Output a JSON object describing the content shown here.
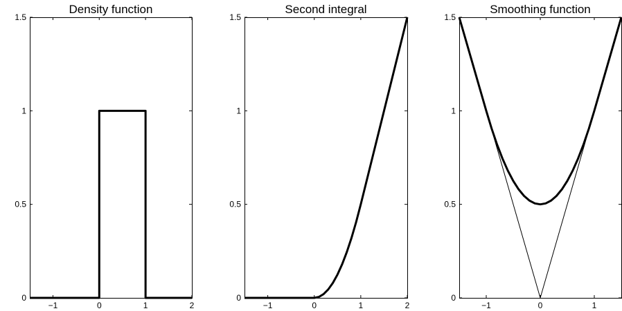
{
  "chart_data": [
    {
      "type": "line",
      "title": "Density function",
      "xlim": [
        -1.5,
        2
      ],
      "ylim": [
        0,
        1.5
      ],
      "xticks": [
        -1,
        0,
        1,
        2
      ],
      "xtick_labels": [
        "−1",
        "0",
        "1",
        "2"
      ],
      "yticks": [
        0,
        0.5,
        1,
        1.5
      ],
      "ytick_labels": [
        "0",
        "0.5",
        "1",
        "1.5"
      ],
      "grid": false,
      "series": [
        {
          "style": "thick",
          "x": [
            -1.5,
            0,
            0,
            1,
            1,
            2
          ],
          "y": [
            0,
            0,
            1,
            1,
            0,
            0
          ]
        }
      ]
    },
    {
      "type": "line",
      "title": "Second integral",
      "xlim": [
        -1.5,
        2
      ],
      "ylim": [
        0,
        1.5
      ],
      "xticks": [
        -1,
        0,
        1,
        2
      ],
      "xtick_labels": [
        "−1",
        "0",
        "1",
        "2"
      ],
      "yticks": [
        0,
        0.5,
        1,
        1.5
      ],
      "ytick_labels": [
        "0",
        "0.5",
        "1",
        "1.5"
      ],
      "grid": false,
      "series": [
        {
          "style": "thick",
          "x": [
            -1.5,
            -0.5,
            0,
            0.1,
            0.2,
            0.3,
            0.4,
            0.5,
            0.6,
            0.7,
            0.8,
            0.9,
            1,
            1.5,
            2
          ],
          "y": [
            0,
            0,
            0,
            0.005,
            0.02,
            0.045,
            0.08,
            0.125,
            0.18,
            0.245,
            0.32,
            0.405,
            0.5,
            1,
            1.5
          ]
        }
      ]
    },
    {
      "type": "line",
      "title": "Smoothing function",
      "xlim": [
        -1.5,
        1.5
      ],
      "ylim": [
        0,
        1.5
      ],
      "xticks": [
        -1,
        0,
        1
      ],
      "xtick_labels": [
        "−1",
        "0",
        "1"
      ],
      "yticks": [
        0,
        0.5,
        1,
        1.5
      ],
      "ytick_labels": [
        "0",
        "0.5",
        "1",
        "1.5"
      ],
      "grid": false,
      "series": [
        {
          "style": "thin",
          "x": [
            -1.5,
            0,
            1.5
          ],
          "y": [
            1.5,
            0,
            1.5
          ]
        },
        {
          "style": "thick",
          "x": [
            -1.5,
            -1,
            -0.9,
            -0.8,
            -0.7,
            -0.6,
            -0.5,
            -0.4,
            -0.3,
            -0.2,
            -0.1,
            0,
            0.1,
            0.2,
            0.3,
            0.4,
            0.5,
            0.6,
            0.7,
            0.8,
            0.9,
            1,
            1.5
          ],
          "y": [
            1.5,
            1,
            0.905,
            0.82,
            0.745,
            0.68,
            0.625,
            0.58,
            0.545,
            0.52,
            0.505,
            0.5,
            0.505,
            0.52,
            0.545,
            0.58,
            0.625,
            0.68,
            0.745,
            0.82,
            0.905,
            1,
            1.5
          ]
        }
      ]
    }
  ]
}
